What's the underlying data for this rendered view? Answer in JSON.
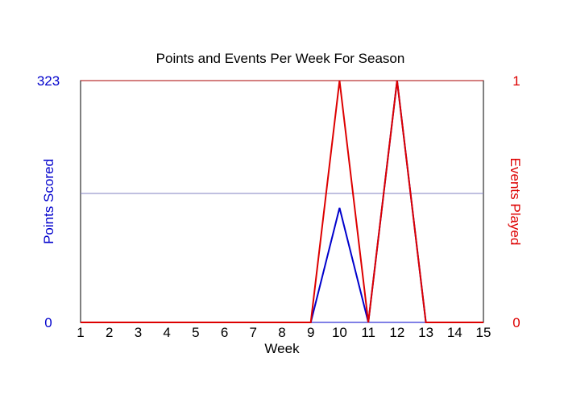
{
  "chart_data": {
    "type": "line",
    "title": "Points and Events Per Week For Season",
    "xlabel": "Week",
    "x": [
      1,
      2,
      3,
      4,
      5,
      6,
      7,
      8,
      9,
      10,
      11,
      12,
      13,
      14,
      15
    ],
    "x_ticks": [
      "1",
      "2",
      "3",
      "4",
      "5",
      "6",
      "7",
      "8",
      "9",
      "10",
      "11",
      "12",
      "13",
      "14",
      "15"
    ],
    "y_left": {
      "label": "Points Scored",
      "ylim": [
        0,
        323
      ],
      "ticks": [
        "0",
        "323"
      ],
      "color": "#0000cc"
    },
    "y_right": {
      "label": "Events Played",
      "ylim": [
        0,
        1
      ],
      "ticks": [
        "0",
        "1"
      ],
      "color": "#dd0000"
    },
    "series": [
      {
        "axis": "left",
        "color": "#0000cc",
        "values": [
          0,
          0,
          0,
          0,
          0,
          0,
          0,
          0,
          0,
          153,
          0,
          323,
          0,
          0,
          0
        ]
      },
      {
        "axis": "right",
        "color": "#dd0000",
        "values": [
          0,
          0,
          0,
          0,
          0,
          0,
          0,
          0,
          0,
          1,
          0,
          1,
          0,
          0,
          0
        ]
      }
    ],
    "reference_line": {
      "axis": "right",
      "value": 0.5333,
      "color": "#8080c0"
    },
    "grid": false
  }
}
